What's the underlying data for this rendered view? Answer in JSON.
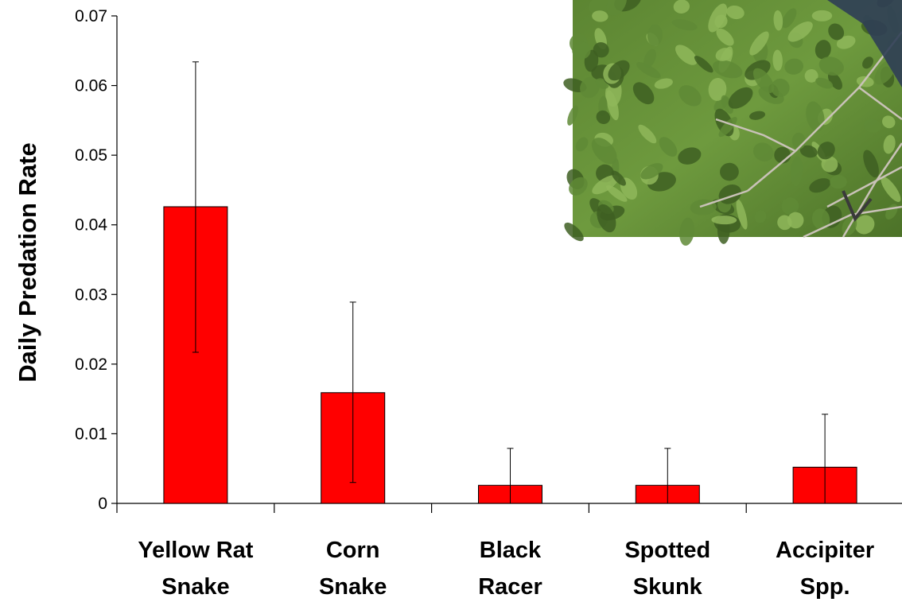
{
  "chart_data": {
    "type": "bar",
    "title": "",
    "xlabel": "",
    "ylabel": "Daily Predation Rate",
    "ylim": [
      0,
      0.07
    ],
    "yticks": [
      "0",
      "0.01",
      "0.02",
      "0.03",
      "0.04",
      "0.05",
      "0.06",
      "0.07"
    ],
    "grid": false,
    "categories": [
      [
        "Yellow Rat",
        "Snake"
      ],
      [
        "Corn",
        "Snake"
      ],
      [
        "Black",
        "Racer"
      ],
      [
        "Spotted",
        "Skunk"
      ],
      [
        "Accipiter",
        "Spp."
      ]
    ],
    "values": [
      0.0426,
      0.0159,
      0.0026,
      0.0026,
      0.0052
    ],
    "error_low": [
      0.0217,
      0.003,
      0.0,
      0.0,
      0.0
    ],
    "error_high": [
      0.0634,
      0.0289,
      0.0079,
      0.0079,
      0.0128
    ],
    "bar_color": "#ff0000",
    "bar_edge_color": "#000000"
  },
  "inset_photo": {
    "description_icon": "bird-in-shrub-photo",
    "colors": [
      "#5f8a36",
      "#8fb75a",
      "#3e5f22",
      "#b7b0a8",
      "#2b3a4f"
    ]
  }
}
